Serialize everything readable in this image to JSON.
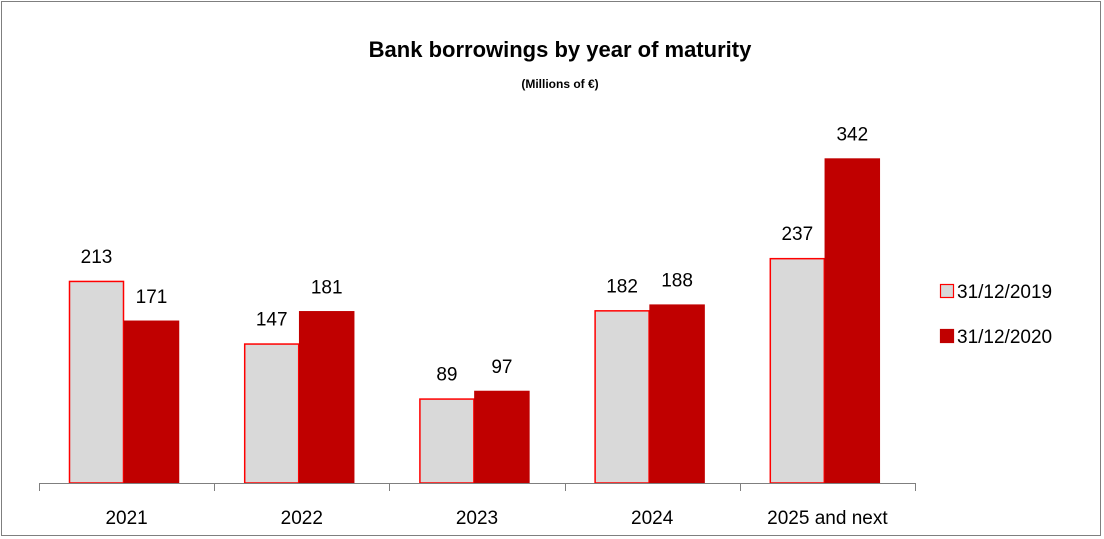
{
  "chart_data": {
    "type": "bar",
    "title": "Bank borrowings by year of maturity",
    "subtitle": "(Millions of €)",
    "categories": [
      "2021",
      "2022",
      "2023",
      "2024",
      "2025 and next"
    ],
    "series": [
      {
        "name": "31/12/2019",
        "values": [
          213,
          147,
          89,
          182,
          237
        ],
        "fill": "#d9d9d9",
        "stroke": "#ff0000"
      },
      {
        "name": "31/12/2020",
        "values": [
          171,
          181,
          97,
          188,
          342
        ],
        "fill": "#c00000",
        "stroke": "#c00000"
      }
    ],
    "ylim": [
      0,
      370
    ],
    "grid": false,
    "legend_position": "right",
    "xlabel": "",
    "ylabel": ""
  }
}
